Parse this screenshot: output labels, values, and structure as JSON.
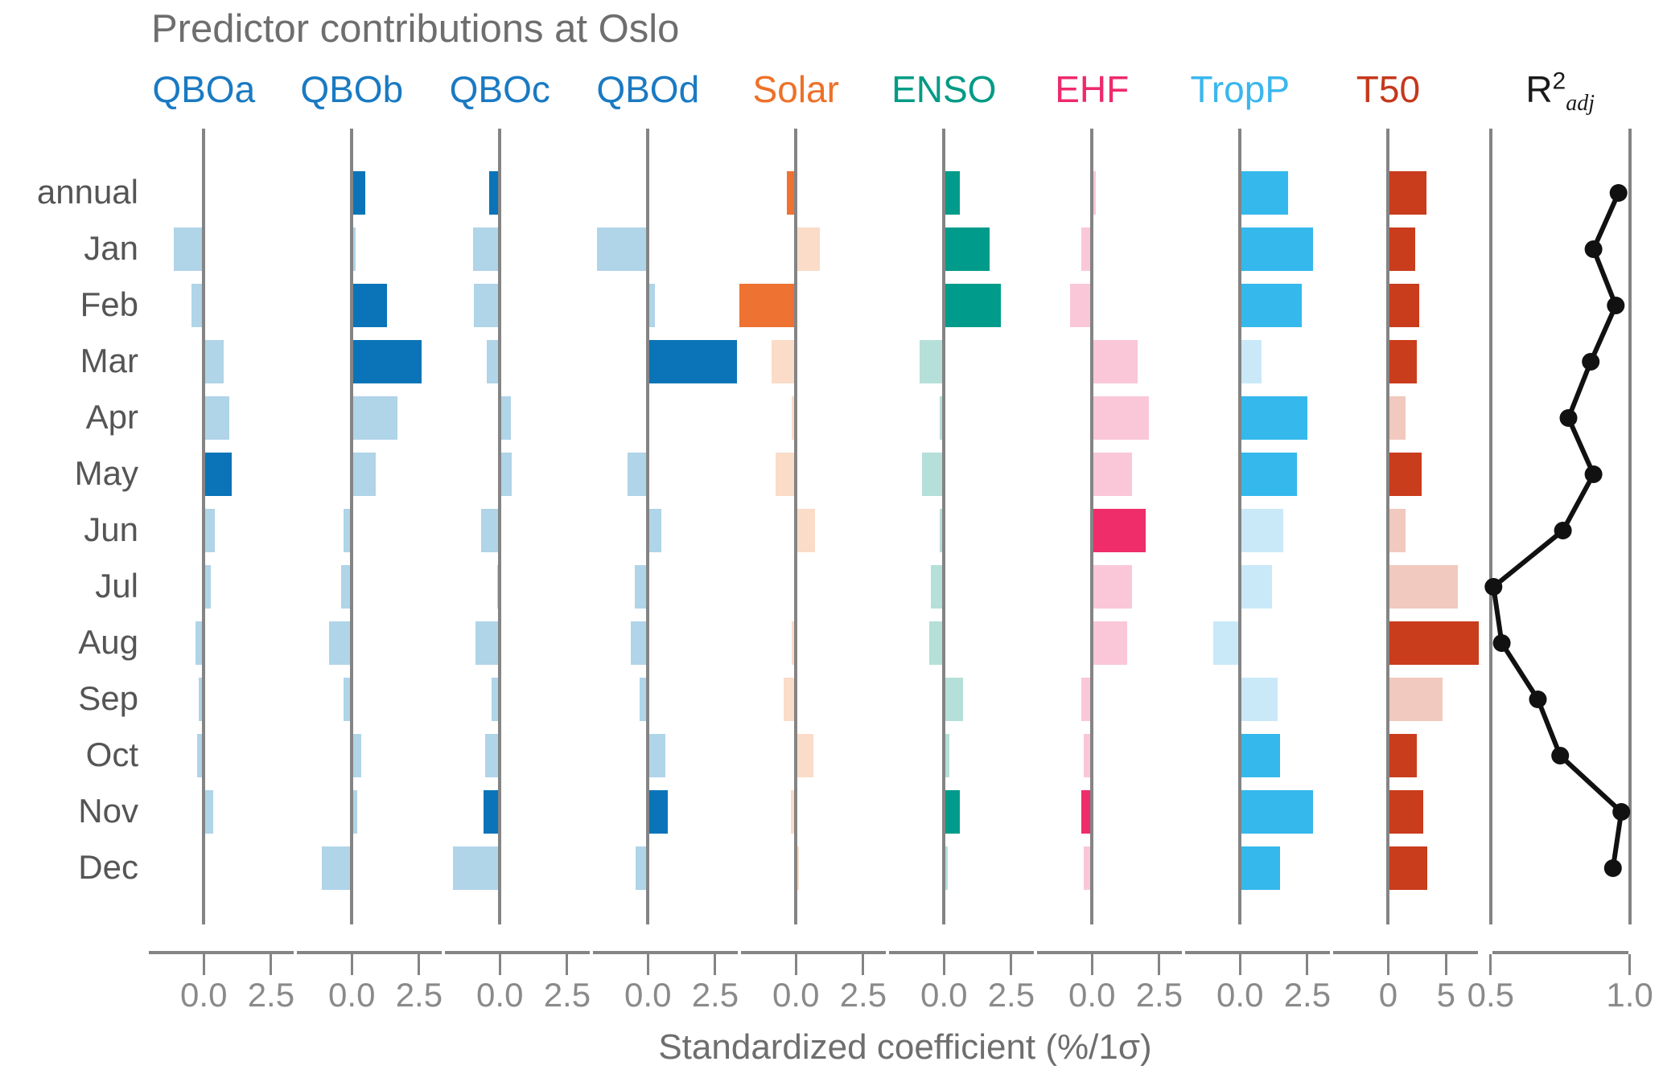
{
  "title": "Predictor contributions at Oslo",
  "xlabel": "Standardized coefficient (%/1σ)",
  "row_labels": [
    "annual",
    "Jan",
    "Feb",
    "Mar",
    "Apr",
    "May",
    "Jun",
    "Jul",
    "Aug",
    "Sep",
    "Oct",
    "Nov",
    "Dec"
  ],
  "r2_header": {
    "base": "R",
    "sup": "2",
    "sub": "adj"
  },
  "colors": {
    "axis_gray": "#848484",
    "title_gray": "#6e6e6e",
    "row_label_gray": "#555555",
    "tick_label_gray": "#8a8a8a",
    "line_black": "#111111"
  },
  "chart_data": {
    "type": "bar",
    "orientation": "horizontal",
    "grid": false,
    "legend": false,
    "categories": [
      "annual",
      "Jan",
      "Feb",
      "Mar",
      "Apr",
      "May",
      "Jun",
      "Jul",
      "Aug",
      "Sep",
      "Oct",
      "Nov",
      "Dec"
    ],
    "note": "Each panel: horizontal bars of standardized coefficients per month; saturated color = significant, pale color = not significant. Last panel: black line+dots of adjusted R2.",
    "series": [
      {
        "name": "QBOa",
        "header_color": "#1a7ac2",
        "strong_color": "#0b74b8",
        "light_color": "#b0d4e8",
        "xlim": [
          -2.1,
          3.4
        ],
        "ticks": [
          {
            "label": "0.0",
            "v": 0
          },
          {
            "label": "2.5",
            "v": 2.5
          }
        ],
        "values": [
          0,
          -1.1,
          -0.45,
          0.75,
          0.95,
          1.05,
          0.4,
          0.25,
          -0.3,
          -0.2,
          -0.25,
          0.35,
          0
        ],
        "significant": [
          0,
          0,
          0,
          0,
          0,
          1,
          0,
          0,
          0,
          0,
          0,
          0,
          0
        ]
      },
      {
        "name": "QBOb",
        "header_color": "#1a7ac2",
        "strong_color": "#0b74b8",
        "light_color": "#b0d4e8",
        "xlim": [
          -2.1,
          3.4
        ],
        "ticks": [
          {
            "label": "0.0",
            "v": 0
          },
          {
            "label": "2.5",
            "v": 2.5
          }
        ],
        "values": [
          0.5,
          0.15,
          1.3,
          2.6,
          1.7,
          0.9,
          -0.3,
          -0.4,
          -0.85,
          -0.3,
          0.35,
          0.2,
          -1.1
        ],
        "significant": [
          1,
          0,
          1,
          1,
          0,
          0,
          0,
          0,
          0,
          0,
          0,
          0,
          0
        ]
      },
      {
        "name": "QBOc",
        "header_color": "#1a7ac2",
        "strong_color": "#0b74b8",
        "light_color": "#b0d4e8",
        "xlim": [
          -2.1,
          3.4
        ],
        "ticks": [
          {
            "label": "0.0",
            "v": 0
          },
          {
            "label": "2.5",
            "v": 2.5
          }
        ],
        "values": [
          -0.4,
          -1.0,
          -0.95,
          -0.5,
          0.4,
          0.45,
          -0.7,
          -0.1,
          -0.9,
          -0.3,
          -0.55,
          -0.6,
          -1.75
        ],
        "significant": [
          1,
          0,
          0,
          0,
          0,
          0,
          0,
          0,
          0,
          0,
          0,
          1,
          0
        ]
      },
      {
        "name": "QBOd",
        "header_color": "#1a7ac2",
        "strong_color": "#0b74b8",
        "light_color": "#b0d4e8",
        "xlim": [
          -2.1,
          3.4
        ],
        "ticks": [
          {
            "label": "0.0",
            "v": 0
          },
          {
            "label": "2.5",
            "v": 2.5
          }
        ],
        "values": [
          0,
          -1.9,
          0.25,
          3.3,
          0,
          -0.75,
          0.5,
          -0.5,
          -0.65,
          -0.3,
          0.65,
          0.75,
          -0.45
        ],
        "significant": [
          0,
          0,
          0,
          1,
          0,
          0,
          0,
          0,
          0,
          0,
          0,
          1,
          0
        ]
      },
      {
        "name": "Solar",
        "header_color": "#ed7128",
        "strong_color": "#ee7231",
        "light_color": "#fadcc8",
        "xlim": [
          -2.1,
          3.4
        ],
        "ticks": [
          {
            "label": "0.0",
            "v": 0
          },
          {
            "label": "2.5",
            "v": 2.5
          }
        ],
        "values": [
          -0.35,
          0.9,
          -2.1,
          -0.9,
          -0.15,
          -0.75,
          0.7,
          0,
          -0.15,
          -0.45,
          0.65,
          -0.2,
          0.1
        ],
        "significant": [
          1,
          0,
          1,
          0,
          0,
          0,
          0,
          0,
          0,
          0,
          0,
          0,
          0
        ]
      },
      {
        "name": "ENSO",
        "header_color": "#009b85",
        "strong_color": "#009b8a",
        "light_color": "#b4e0d9",
        "xlim": [
          -2.1,
          3.4
        ],
        "ticks": [
          {
            "label": "0.0",
            "v": 0
          },
          {
            "label": "2.5",
            "v": 2.5
          }
        ],
        "values": [
          0.6,
          1.7,
          2.1,
          -0.9,
          -0.15,
          -0.8,
          -0.15,
          -0.5,
          -0.55,
          0.7,
          0.2,
          0.6,
          0.15
        ],
        "significant": [
          1,
          1,
          1,
          0,
          0,
          0,
          0,
          0,
          0,
          0,
          0,
          1,
          0
        ]
      },
      {
        "name": "EHF",
        "header_color": "#ee2a6e",
        "strong_color": "#ee2d6a",
        "light_color": "#fac7d9",
        "xlim": [
          -2.1,
          3.4
        ],
        "ticks": [
          {
            "label": "0.0",
            "v": 0
          },
          {
            "label": "2.5",
            "v": 2.5
          }
        ],
        "values": [
          0.15,
          -0.4,
          -0.8,
          1.7,
          2.1,
          1.5,
          2.0,
          1.5,
          1.3,
          -0.4,
          -0.3,
          -0.4,
          -0.3
        ],
        "significant": [
          0,
          0,
          0,
          0,
          0,
          0,
          1,
          0,
          0,
          0,
          0,
          1,
          0
        ]
      },
      {
        "name": "TropP",
        "header_color": "#3ab7ec",
        "strong_color": "#35b8ec",
        "light_color": "#c9e9f9",
        "xlim": [
          -2.1,
          3.4
        ],
        "ticks": [
          {
            "label": "0.0",
            "v": 0
          },
          {
            "label": "2.5",
            "v": 2.5
          }
        ],
        "values": [
          1.8,
          2.7,
          2.3,
          0.8,
          2.5,
          2.1,
          1.6,
          1.2,
          -1.0,
          1.4,
          1.5,
          2.7,
          1.5
        ],
        "significant": [
          1,
          1,
          1,
          0,
          1,
          1,
          0,
          0,
          0,
          0,
          1,
          1,
          1
        ]
      },
      {
        "name": "T50",
        "header_color": "#c5381c",
        "strong_color": "#c93c1c",
        "light_color": "#f1c9bf",
        "xlim": [
          -4.9,
          7.9
        ],
        "ticks": [
          {
            "label": "0",
            "v": 0
          },
          {
            "label": "5",
            "v": 5
          }
        ],
        "values": [
          3.3,
          2.3,
          2.7,
          2.5,
          1.5,
          2.9,
          1.5,
          6.0,
          7.8,
          4.7,
          2.5,
          3.0,
          3.4
        ],
        "significant": [
          1,
          1,
          1,
          1,
          0,
          1,
          0,
          0,
          1,
          0,
          1,
          1,
          1
        ]
      }
    ],
    "line_series": {
      "name": "R2adj",
      "type": "line",
      "color": "#111111",
      "xlim": [
        0.46,
        1.12
      ],
      "ticks": [
        {
          "label": "0.5",
          "v": 0.5
        },
        {
          "label": "1.0",
          "v": 1.0
        }
      ],
      "guide_lines": [
        0.5,
        1.0
      ],
      "values": [
        0.96,
        0.87,
        0.95,
        0.86,
        0.78,
        0.87,
        0.76,
        0.51,
        0.54,
        0.67,
        0.75,
        0.97,
        0.94
      ]
    }
  }
}
